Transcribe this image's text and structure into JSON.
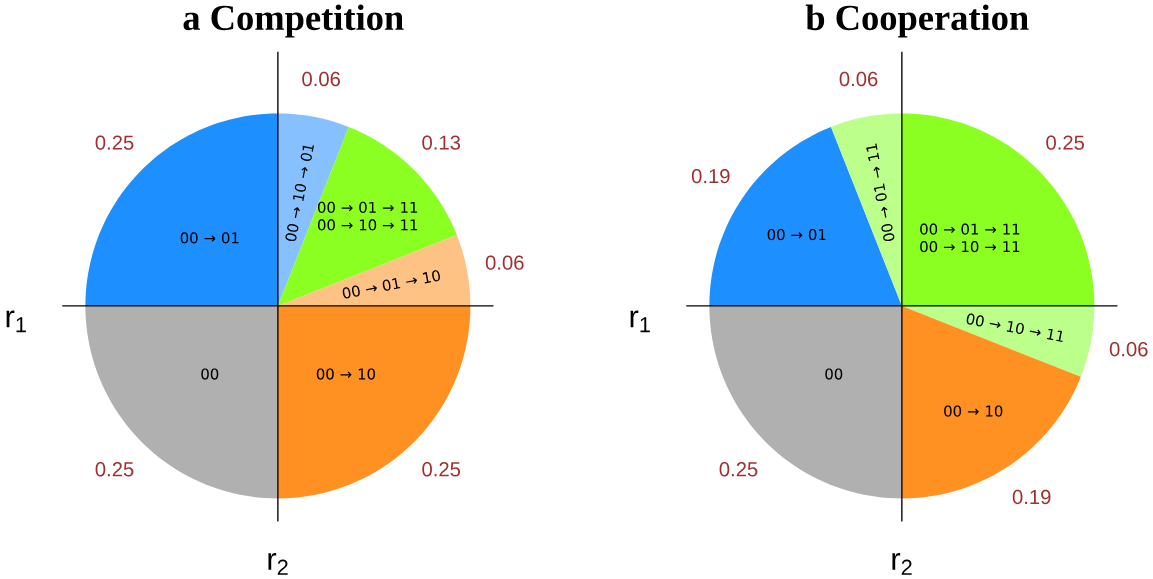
{
  "chart_data": [
    {
      "type": "pie",
      "title": "a Competition",
      "xlabel": "r$_{1}$",
      "ylabel": "r$_{2}$",
      "data_labels": true,
      "categories": [
        "00 → 10 → 01",
        "00 → 01 → 11 00 → 10 → 11",
        "00 → 01 → 10",
        "00 → 10",
        "00",
        "00 → 01"
      ],
      "values": [
        0.06,
        0.13,
        0.06,
        0.25,
        0.25,
        0.25
      ],
      "colors": [
        "#87c0ff",
        "#8cff22",
        "#ffc285",
        "#ff9122",
        "#b0b0b0",
        "#1e8fff"
      ]
    },
    {
      "type": "pie",
      "title": "b Cooperation",
      "xlabel": "r$_{1}$",
      "ylabel": "r$_{2}$",
      "data_labels": true,
      "categories": [
        "00 → 01 → 11 00 → 10 → 11",
        "00 → 10 → 11",
        "00 → 10",
        "00",
        "00 → 01",
        "00 → 01 → 11"
      ],
      "values": [
        0.25,
        0.06,
        0.19,
        0.25,
        0.19,
        0.06
      ],
      "colors": [
        "#8cff22",
        "#bcff8a",
        "#ff9122",
        "#b0b0b0",
        "#1e8fff",
        "#bcff8a"
      ]
    }
  ]
}
